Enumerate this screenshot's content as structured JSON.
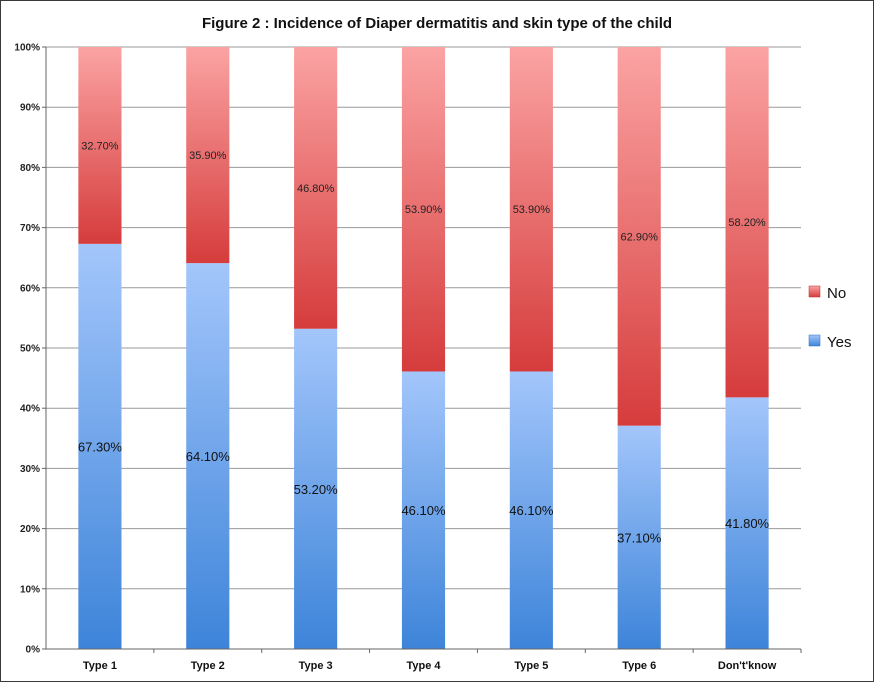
{
  "chart_data": {
    "type": "bar",
    "stacked": true,
    "percent_stacked": true,
    "title": "Figure 2 : Incidence of Diaper dermatitis and skin type of the child",
    "xlabel": "",
    "ylabel": "",
    "ylim": [
      0,
      100
    ],
    "ytick_labels": [
      "0%",
      "10%",
      "20%",
      "30%",
      "40%",
      "50%",
      "60%",
      "70%",
      "80%",
      "90%",
      "100%"
    ],
    "categories": [
      "Type 1",
      "Type 2",
      "Type 3",
      "Type 4",
      "Type 5",
      "Type 6",
      "Don't'know"
    ],
    "series": [
      {
        "name": "Yes",
        "values": [
          67.3,
          64.1,
          53.2,
          46.1,
          46.1,
          37.1,
          41.8
        ],
        "labels": [
          "67.30%",
          "64.10%",
          "53.20%",
          "46.10%",
          "46.10%",
          "37.10%",
          "41.80%"
        ],
        "color_light": "#a3c6fb",
        "color_dark": "#3d84d9"
      },
      {
        "name": "No",
        "values": [
          32.7,
          35.9,
          46.8,
          53.9,
          53.9,
          62.9,
          58.2
        ],
        "labels": [
          "32.70%",
          "35.90%",
          "46.80%",
          "53.90%",
          "53.90%",
          "62.90%",
          "58.20%"
        ],
        "color_light": "#fba3a3",
        "color_dark": "#d63c3c"
      }
    ],
    "legend": [
      "No",
      "Yes"
    ],
    "legend_position": "right",
    "grid": true
  }
}
